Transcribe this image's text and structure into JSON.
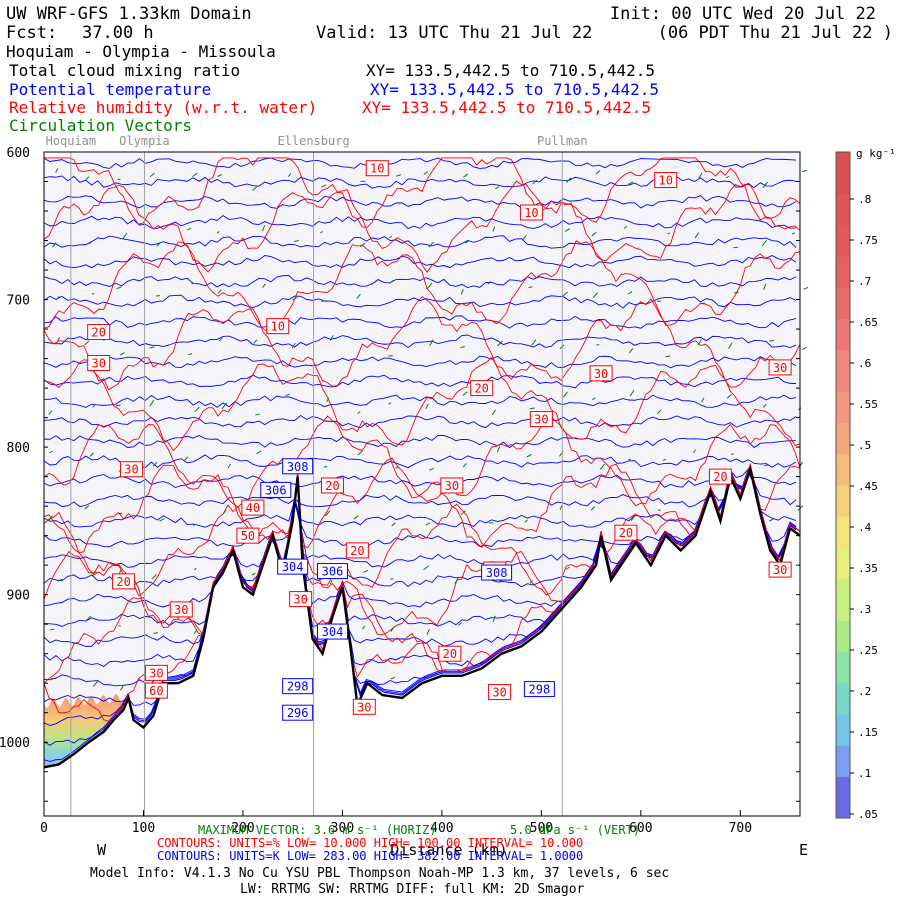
{
  "header": {
    "title": "UW WRF-GFS 1.33km Domain",
    "init": "Init: 00 UTC Wed 20 Jul 22",
    "fcst_label": "Fcst:",
    "fcst_value": "37.00 h",
    "valid": "Valid: 13 UTC Thu 21 Jul 22",
    "valid_local": "(06 PDT Thu 21 Jul 22  )",
    "route": "Hoquiam - Olympia - Missoula"
  },
  "fields": [
    {
      "label": "Total cloud mixing ratio",
      "xy": "XY= 133.5,442.5 to 710.5,442.5",
      "color": "#000000"
    },
    {
      "label": "Potential temperature",
      "xy": "XY= 133.5,442.5 to 710.5,442.5",
      "color": "#0000ff"
    },
    {
      "label": "Relative humidity (w.r.t. water)",
      "xy": "XY= 133.5,442.5 to 710.5,442.5",
      "color": "#ff0000"
    },
    {
      "label": "Circulation Vectors",
      "xy": "",
      "color": "#008000"
    }
  ],
  "places": [
    "Hoquiam",
    "Olympia",
    "Ellensburg",
    "Pullman"
  ],
  "colorbar": {
    "unit": "g kg⁻¹",
    "labels": [
      ".8",
      ".75",
      ".7",
      ".65",
      ".6",
      ".55",
      ".5",
      ".45",
      ".4",
      ".35",
      ".3",
      ".25",
      ".2",
      ".15",
      ".1",
      ".05"
    ]
  },
  "footer": {
    "max_vector": "MAXIMUM VECTOR: 3.6 m s⁻¹ (HORIZ)",
    "max_vector_vert": "5.0 dPa s⁻¹ (VERT)",
    "west": "W",
    "east": "E",
    "xlabel": "Distance (km)",
    "rh_contours": "CONTOURS:  UNITS=%  LOW=  10.000     HIGH=  100.00     INTERVAL=  10.000",
    "th_contours": "CONTOURS:  UNITS=K  LOW=  283.00     HIGH=  382.00     INTERVAL=  1.0000",
    "model_info": "Model Info: V4.1.3    No Cu    YSU PBL  Thompson    Noah-MP    1.3 km,   37 levels,    6 sec",
    "physics": "LW: RRTMG SW: RRTMG    DIFF: full    KM: 2D Smagor"
  },
  "chart_data": {
    "type": "cross-section",
    "xlabel": "Distance (km)",
    "ylabel": "Pressure (hPa)",
    "xlim": [
      0,
      760
    ],
    "ylim": [
      1050,
      600
    ],
    "x_ticks": [
      0,
      100,
      200,
      300,
      400,
      500,
      600,
      700
    ],
    "y_ticks": [
      600,
      700,
      800,
      900,
      1000
    ],
    "y_tick_labels": [
      "600",
      "700",
      "800",
      "900",
      "1000"
    ],
    "place_markers": [
      {
        "name": "Hoquiam",
        "x": 27
      },
      {
        "name": "Olympia",
        "x": 101
      },
      {
        "name": "Ellensburg",
        "x": 271
      },
      {
        "name": "Pullman",
        "x": 521
      }
    ],
    "terrain_surface_hpa": [
      [
        0,
        1017
      ],
      [
        15,
        1015
      ],
      [
        30,
        1008
      ],
      [
        45,
        1000
      ],
      [
        60,
        993
      ],
      [
        70,
        985
      ],
      [
        80,
        978
      ],
      [
        85,
        970
      ],
      [
        90,
        985
      ],
      [
        100,
        990
      ],
      [
        110,
        982
      ],
      [
        120,
        960
      ],
      [
        135,
        960
      ],
      [
        150,
        955
      ],
      [
        160,
        930
      ],
      [
        170,
        895
      ],
      [
        180,
        885
      ],
      [
        190,
        870
      ],
      [
        200,
        895
      ],
      [
        210,
        900
      ],
      [
        220,
        880
      ],
      [
        230,
        860
      ],
      [
        240,
        885
      ],
      [
        250,
        850
      ],
      [
        255,
        820
      ],
      [
        260,
        880
      ],
      [
        270,
        930
      ],
      [
        280,
        940
      ],
      [
        290,
        915
      ],
      [
        300,
        895
      ],
      [
        308,
        935
      ],
      [
        315,
        975
      ],
      [
        325,
        960
      ],
      [
        340,
        968
      ],
      [
        360,
        970
      ],
      [
        380,
        960
      ],
      [
        400,
        955
      ],
      [
        420,
        955
      ],
      [
        440,
        950
      ],
      [
        460,
        940
      ],
      [
        480,
        935
      ],
      [
        500,
        925
      ],
      [
        520,
        910
      ],
      [
        540,
        895
      ],
      [
        555,
        880
      ],
      [
        560,
        860
      ],
      [
        570,
        890
      ],
      [
        580,
        880
      ],
      [
        595,
        865
      ],
      [
        610,
        880
      ],
      [
        625,
        860
      ],
      [
        640,
        870
      ],
      [
        655,
        860
      ],
      [
        670,
        830
      ],
      [
        680,
        850
      ],
      [
        690,
        820
      ],
      [
        700,
        835
      ],
      [
        710,
        815
      ],
      [
        720,
        845
      ],
      [
        730,
        870
      ],
      [
        740,
        880
      ],
      [
        750,
        855
      ],
      [
        760,
        860
      ]
    ],
    "cloud_region": {
      "x": [
        0,
        80
      ],
      "p_top": 970,
      "p_bottom": 1015
    },
    "theta_labels_K": [
      {
        "x": 255,
        "p": 813,
        "label": "308"
      },
      {
        "x": 233,
        "p": 829,
        "label": "306"
      },
      {
        "x": 250,
        "p": 881,
        "label": "304"
      },
      {
        "x": 290,
        "p": 884,
        "label": "306"
      },
      {
        "x": 455,
        "p": 885,
        "label": "308"
      },
      {
        "x": 290,
        "p": 925,
        "label": "304"
      },
      {
        "x": 255,
        "p": 962,
        "label": "298"
      },
      {
        "x": 255,
        "p": 980,
        "label": "296"
      },
      {
        "x": 498,
        "p": 964,
        "label": "298"
      }
    ],
    "rh_labels_pct": [
      {
        "x": 335,
        "p": 611,
        "label": "10"
      },
      {
        "x": 625,
        "p": 619,
        "label": "10"
      },
      {
        "x": 490,
        "p": 641,
        "label": "10"
      },
      {
        "x": 55,
        "p": 722,
        "label": "20"
      },
      {
        "x": 235,
        "p": 718,
        "label": "10"
      },
      {
        "x": 55,
        "p": 743,
        "label": "30"
      },
      {
        "x": 440,
        "p": 760,
        "label": "20"
      },
      {
        "x": 560,
        "p": 750,
        "label": "30"
      },
      {
        "x": 740,
        "p": 746,
        "label": "30"
      },
      {
        "x": 500,
        "p": 781,
        "label": "30"
      },
      {
        "x": 88,
        "p": 815,
        "label": "30"
      },
      {
        "x": 410,
        "p": 826,
        "label": "30"
      },
      {
        "x": 290,
        "p": 826,
        "label": "20"
      },
      {
        "x": 680,
        "p": 820,
        "label": "20"
      },
      {
        "x": 210,
        "p": 841,
        "label": "40"
      },
      {
        "x": 585,
        "p": 858,
        "label": "20"
      },
      {
        "x": 205,
        "p": 860,
        "label": "50"
      },
      {
        "x": 315,
        "p": 870,
        "label": "20"
      },
      {
        "x": 453,
        "p": 883,
        "label": "20"
      },
      {
        "x": 80,
        "p": 891,
        "label": "20"
      },
      {
        "x": 740,
        "p": 883,
        "label": "30"
      },
      {
        "x": 138,
        "p": 910,
        "label": "30"
      },
      {
        "x": 258,
        "p": 903,
        "label": "30"
      },
      {
        "x": 408,
        "p": 940,
        "label": "20"
      },
      {
        "x": 113,
        "p": 953,
        "label": "30"
      },
      {
        "x": 113,
        "p": 965,
        "label": "60"
      },
      {
        "x": 322,
        "p": 976,
        "label": "30"
      },
      {
        "x": 458,
        "p": 966,
        "label": "30"
      }
    ]
  }
}
